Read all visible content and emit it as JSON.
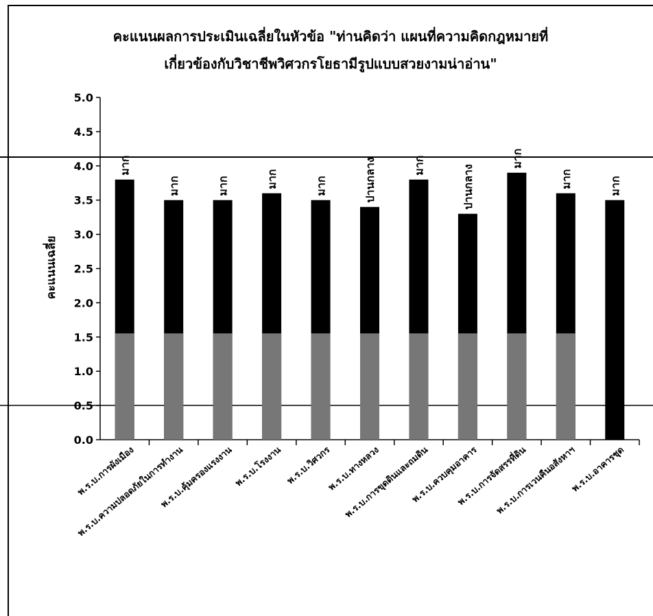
{
  "chart_data": {
    "type": "bar",
    "title": "คะแนนผลการประเมินเฉลี่ยในหัวข้อ \"ท่านคิดว่า แผนที่ความคิดกฎหมายที่ เกี่ยวข้องกับวิชาชีพวิศวกรโยธามีรูปแบบสวยงามน่าอ่าน\"",
    "title_lines": [
      "คะแนนผลการประเมินเฉลี่ยในหัวข้อ \"ท่านคิดว่า แผนที่ความคิดกฎหมายที่",
      "เกี่ยวข้องกับวิชาชีพวิศวกรโยธามีรูปแบบสวยงามน่าอ่าน\""
    ],
    "ylabel": "คะแนนเฉลี่ย",
    "xlabel": "",
    "ylim": [
      0,
      5
    ],
    "y_ticks": [
      "0.0",
      "0.5",
      "1.0",
      "1.5",
      "2.0",
      "2.5",
      "3.0",
      "3.5",
      "4.0",
      "4.5",
      "5.0"
    ],
    "grid": false,
    "legend": "none",
    "categories": [
      "พ.ร.บ.การผังเมือง",
      "พ.ร.บ.ความปลอดภัยในการทำงาน",
      "พ.ร.บ.คุ้มครองแรงงาน",
      "พ.ร.บ.โรงงาน",
      "พ.ร.บ.วิศวกร",
      "พ.ร.บ.ทางหลวง",
      "พ.ร.บ.การขุดดินและถมดิน",
      "พ.ร.บ.ควบคุมอาคาร",
      "พ.ร.บ.การจัดสรรที่ดิน",
      "พ.ร.บ.การเวนคืนอสังหาฯ",
      "พ.ร.บ.อาคารชุด"
    ],
    "values": [
      3.8,
      3.5,
      3.5,
      3.6,
      3.5,
      3.4,
      3.8,
      3.3,
      3.9,
      3.6,
      3.5
    ],
    "data_labels": [
      "มาก",
      "มาก",
      "มาก",
      "มาก",
      "มาก",
      "ปานกลาง",
      "มาก",
      "ปานกลาง",
      "มาก",
      "มาก",
      "มาก"
    ],
    "bar_color": "#000000",
    "band_color": "#777777"
  }
}
